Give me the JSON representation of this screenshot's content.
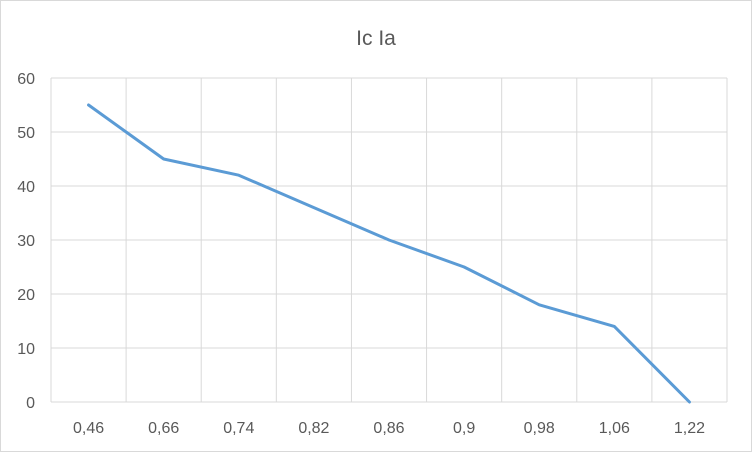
{
  "chart_data": {
    "type": "line",
    "title": "Ic Ia",
    "xlabel": "",
    "ylabel": "",
    "categories": [
      "0,46",
      "0,66",
      "0,74",
      "0,82",
      "0,86",
      "0,9",
      "0,98",
      "1,06",
      "1,22"
    ],
    "series": [
      {
        "values": [
          55,
          45,
          42,
          36,
          30,
          25,
          18,
          14,
          0
        ]
      }
    ],
    "ylim": [
      0,
      60
    ],
    "yticks": [
      0,
      10,
      20,
      30,
      40,
      50,
      60
    ],
    "grid": true,
    "legend": "none",
    "colors": {
      "series": "#5b9bd5",
      "grid": "#d9d9d9",
      "text": "#595959"
    }
  }
}
